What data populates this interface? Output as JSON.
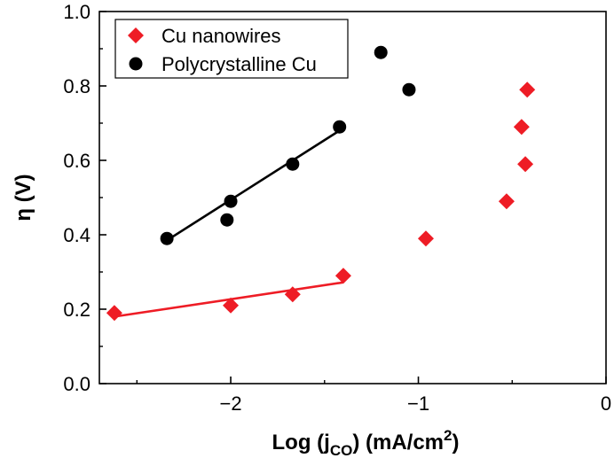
{
  "chart_data": {
    "type": "scatter",
    "title": "",
    "xlabel": {
      "main": "Log (j",
      "sub": "CO",
      "rest": ") (mA/cm",
      "sup": "2",
      "close": ")"
    },
    "ylabel": "η (V)",
    "xlim": [
      -2.7,
      0
    ],
    "ylim": [
      0,
      1.0
    ],
    "xticks": [
      -2,
      -1,
      0
    ],
    "yticks": [
      0.0,
      0.2,
      0.4,
      0.6,
      0.8,
      1.0
    ],
    "xtick_labels": [
      "−2",
      "−1",
      "0"
    ],
    "ytick_labels": [
      "0.0",
      "0.2",
      "0.4",
      "0.6",
      "0.8",
      "1.0"
    ],
    "legend_position": "top-left",
    "series": [
      {
        "name": "Cu nanowires",
        "marker": "diamond",
        "color": "#ee1c25",
        "points": [
          {
            "x": -2.62,
            "y": 0.19
          },
          {
            "x": -2.0,
            "y": 0.21
          },
          {
            "x": -1.67,
            "y": 0.24
          },
          {
            "x": -1.4,
            "y": 0.29
          },
          {
            "x": -0.96,
            "y": 0.39
          },
          {
            "x": -0.53,
            "y": 0.49
          },
          {
            "x": -0.43,
            "y": 0.59
          },
          {
            "x": -0.45,
            "y": 0.69
          },
          {
            "x": -0.42,
            "y": 0.79
          }
        ],
        "fit_line": {
          "x": [
            -2.62,
            -1.4
          ],
          "y": [
            0.18,
            0.272
          ]
        }
      },
      {
        "name": "Polycrystalline Cu",
        "marker": "circle",
        "color": "#000000",
        "points": [
          {
            "x": -2.34,
            "y": 0.39
          },
          {
            "x": -2.02,
            "y": 0.44
          },
          {
            "x": -2.0,
            "y": 0.49
          },
          {
            "x": -1.67,
            "y": 0.59
          },
          {
            "x": -1.42,
            "y": 0.69
          },
          {
            "x": -1.2,
            "y": 0.89
          },
          {
            "x": -1.05,
            "y": 0.79
          }
        ],
        "fit_line": {
          "x": [
            -2.34,
            -1.42
          ],
          "y": [
            0.385,
            0.68
          ]
        }
      }
    ]
  }
}
